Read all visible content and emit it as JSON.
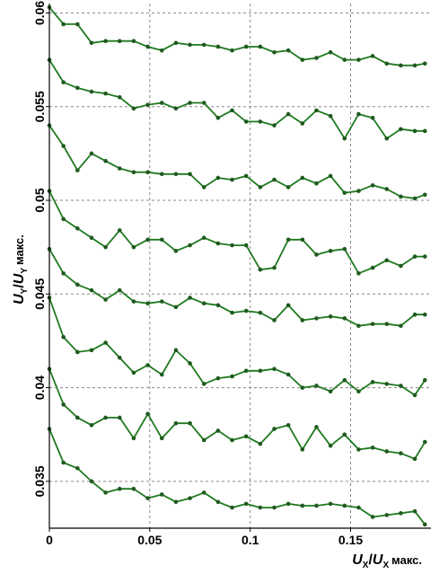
{
  "chart_data": {
    "type": "line",
    "ylabel": "U_Y / U_Y макс.",
    "ylabel_parts": {
      "u1": "U",
      "sub1": "Y",
      "slash": "/",
      "u2": "U",
      "sub2": "Y",
      "suffix": "макс."
    },
    "xlabel_parts": {
      "u1": "U",
      "sub1": "X",
      "slash": "/",
      "u2": "U",
      "sub2": "X",
      "suffix": "макс."
    },
    "xlim": [
      0,
      0.19
    ],
    "ylim": [
      0.0325,
      0.0605
    ],
    "xticks": [
      {
        "value": 0,
        "label": "0"
      },
      {
        "value": 0.05,
        "label": "0.05"
      },
      {
        "value": 0.1,
        "label": "0.1"
      },
      {
        "value": 0.15,
        "label": "0.15"
      }
    ],
    "yticks": [
      {
        "value": 0.035,
        "label": "0.035"
      },
      {
        "value": 0.04,
        "label": "0.04"
      },
      {
        "value": 0.045,
        "label": "0.045"
      },
      {
        "value": 0.05,
        "label": "0.05"
      },
      {
        "value": 0.055,
        "label": "0.055"
      },
      {
        "value": 0.06,
        "label": "0.06"
      }
    ],
    "grid": true,
    "grid_style": "dashed",
    "line_color": "#1f7a1f",
    "marker_color": "#1f5a1f",
    "x": [
      0,
      0.007,
      0.014,
      0.021,
      0.028,
      0.035,
      0.042,
      0.049,
      0.056,
      0.063,
      0.07,
      0.077,
      0.084,
      0.091,
      0.098,
      0.105,
      0.112,
      0.119,
      0.126,
      0.133,
      0.14,
      0.147,
      0.154,
      0.161,
      0.168,
      0.175,
      0.182,
      0.187
    ],
    "series": [
      {
        "values": [
          0.0603,
          0.0594,
          0.0594,
          0.0584,
          0.0585,
          0.0585,
          0.0585,
          0.0582,
          0.058,
          0.0584,
          0.0583,
          0.0583,
          0.0582,
          0.058,
          0.0582,
          0.0582,
          0.0579,
          0.058,
          0.0575,
          0.0576,
          0.0579,
          0.0575,
          0.0575,
          0.0577,
          0.0573,
          0.0572,
          0.0572,
          0.0573
        ]
      },
      {
        "values": [
          0.0575,
          0.0563,
          0.056,
          0.0558,
          0.0557,
          0.0555,
          0.0549,
          0.0551,
          0.0552,
          0.0549,
          0.0552,
          0.0552,
          0.0544,
          0.0548,
          0.0542,
          0.0542,
          0.054,
          0.0546,
          0.0541,
          0.0548,
          0.0545,
          0.0533,
          0.0546,
          0.0544,
          0.0533,
          0.0538,
          0.0537,
          0.0537
        ]
      },
      {
        "values": [
          0.054,
          0.0529,
          0.0516,
          0.0525,
          0.0521,
          0.0517,
          0.0515,
          0.0515,
          0.0514,
          0.0514,
          0.0514,
          0.0507,
          0.0512,
          0.0511,
          0.0513,
          0.0507,
          0.0511,
          0.0507,
          0.0512,
          0.0509,
          0.0513,
          0.0504,
          0.0505,
          0.0508,
          0.0506,
          0.0502,
          0.0501,
          0.0503
        ]
      },
      {
        "values": [
          0.0505,
          0.049,
          0.0485,
          0.048,
          0.0475,
          0.0484,
          0.0475,
          0.0479,
          0.0479,
          0.0473,
          0.0476,
          0.048,
          0.0477,
          0.0476,
          0.0476,
          0.0463,
          0.0464,
          0.0479,
          0.0479,
          0.0471,
          0.0473,
          0.0474,
          0.0461,
          0.0464,
          0.0468,
          0.0465,
          0.047,
          0.047
        ]
      },
      {
        "values": [
          0.0474,
          0.0461,
          0.0455,
          0.0452,
          0.0447,
          0.0452,
          0.0446,
          0.0445,
          0.0446,
          0.0443,
          0.0448,
          0.0445,
          0.0444,
          0.044,
          0.0441,
          0.044,
          0.0436,
          0.0444,
          0.0436,
          0.0437,
          0.0438,
          0.0437,
          0.0433,
          0.0434,
          0.0434,
          0.0433,
          0.0439,
          0.0439
        ]
      },
      {
        "values": [
          0.0448,
          0.0427,
          0.0419,
          0.042,
          0.0424,
          0.0416,
          0.0408,
          0.0412,
          0.0407,
          0.042,
          0.0413,
          0.0402,
          0.0405,
          0.0406,
          0.0409,
          0.0409,
          0.041,
          0.0407,
          0.04,
          0.0401,
          0.0398,
          0.0404,
          0.0398,
          0.0403,
          0.0402,
          0.0401,
          0.0396,
          0.0404
        ]
      },
      {
        "values": [
          0.041,
          0.0391,
          0.0384,
          0.038,
          0.0384,
          0.0384,
          0.0373,
          0.0386,
          0.0373,
          0.0381,
          0.0381,
          0.0372,
          0.0377,
          0.0372,
          0.0374,
          0.037,
          0.0378,
          0.038,
          0.0367,
          0.0379,
          0.0369,
          0.0375,
          0.0367,
          0.0368,
          0.0366,
          0.0365,
          0.0362,
          0.0371
        ]
      },
      {
        "values": [
          0.0378,
          0.036,
          0.0357,
          0.035,
          0.0344,
          0.0346,
          0.0346,
          0.0341,
          0.0343,
          0.0339,
          0.0341,
          0.0344,
          0.0339,
          0.0336,
          0.0338,
          0.0336,
          0.0336,
          0.0338,
          0.0337,
          0.0337,
          0.0338,
          0.0337,
          0.0336,
          0.0331,
          0.0332,
          0.0333,
          0.0334,
          0.0327
        ]
      }
    ]
  }
}
